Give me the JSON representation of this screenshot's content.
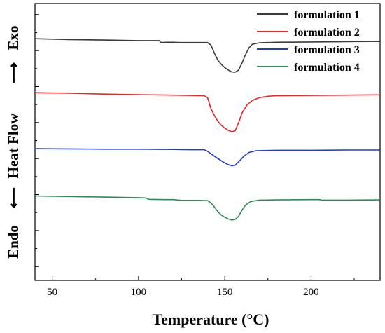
{
  "chart_data": {
    "type": "line",
    "xlabel": "Temperature (°C)",
    "ylabel": {
      "top": "Exo",
      "middle": "Heat Flow",
      "bottom": "Endo"
    },
    "xlim": [
      40,
      240
    ],
    "xticks": [
      50,
      100,
      150,
      200
    ],
    "grid": false,
    "y_tick_labels": false,
    "legend_position": "top-right",
    "series": [
      {
        "name": "formulation 1",
        "color": "#3a3a3a",
        "points": [
          [
            40,
            0.873
          ],
          [
            60,
            0.87
          ],
          [
            80,
            0.868
          ],
          [
            100,
            0.866
          ],
          [
            112,
            0.866
          ],
          [
            113,
            0.859
          ],
          [
            116,
            0.86
          ],
          [
            120,
            0.86
          ],
          [
            125,
            0.859
          ],
          [
            130,
            0.859
          ],
          [
            135,
            0.859
          ],
          [
            140,
            0.859
          ],
          [
            142,
            0.85
          ],
          [
            144,
            0.82
          ],
          [
            146,
            0.795
          ],
          [
            148,
            0.78
          ],
          [
            150,
            0.768
          ],
          [
            152,
            0.76
          ],
          [
            154,
            0.753
          ],
          [
            156,
            0.752
          ],
          [
            158,
            0.76
          ],
          [
            160,
            0.785
          ],
          [
            162,
            0.815
          ],
          [
            164,
            0.84
          ],
          [
            166,
            0.853
          ],
          [
            170,
            0.858
          ],
          [
            180,
            0.86
          ],
          [
            200,
            0.861
          ],
          [
            220,
            0.862
          ],
          [
            240,
            0.863
          ]
        ]
      },
      {
        "name": "formulation 2",
        "color": "#e8262b",
        "points": [
          [
            40,
            0.678
          ],
          [
            60,
            0.676
          ],
          [
            80,
            0.673
          ],
          [
            100,
            0.671
          ],
          [
            120,
            0.669
          ],
          [
            130,
            0.668
          ],
          [
            138,
            0.667
          ],
          [
            140,
            0.66
          ],
          [
            141,
            0.64
          ],
          [
            142,
            0.62
          ],
          [
            144,
            0.595
          ],
          [
            146,
            0.575
          ],
          [
            148,
            0.56
          ],
          [
            150,
            0.55
          ],
          [
            152,
            0.542
          ],
          [
            154,
            0.537
          ],
          [
            156,
            0.54
          ],
          [
            158,
            0.57
          ],
          [
            160,
            0.605
          ],
          [
            163,
            0.635
          ],
          [
            166,
            0.65
          ],
          [
            170,
            0.66
          ],
          [
            175,
            0.665
          ],
          [
            180,
            0.667
          ],
          [
            200,
            0.668
          ],
          [
            220,
            0.669
          ],
          [
            240,
            0.67
          ]
        ]
      },
      {
        "name": "formulation 3",
        "color": "#1f3fbf",
        "points": [
          [
            40,
            0.476
          ],
          [
            60,
            0.475
          ],
          [
            80,
            0.474
          ],
          [
            100,
            0.474
          ],
          [
            120,
            0.473
          ],
          [
            130,
            0.472
          ],
          [
            138,
            0.472
          ],
          [
            140,
            0.466
          ],
          [
            143,
            0.453
          ],
          [
            146,
            0.44
          ],
          [
            149,
            0.428
          ],
          [
            152,
            0.418
          ],
          [
            154,
            0.414
          ],
          [
            156,
            0.416
          ],
          [
            158,
            0.428
          ],
          [
            161,
            0.448
          ],
          [
            164,
            0.462
          ],
          [
            168,
            0.468
          ],
          [
            180,
            0.47
          ],
          [
            200,
            0.47
          ],
          [
            220,
            0.471
          ],
          [
            240,
            0.471
          ]
        ]
      },
      {
        "name": "formulation 4",
        "color": "#2e8b57",
        "points": [
          [
            40,
            0.305
          ],
          [
            60,
            0.303
          ],
          [
            80,
            0.301
          ],
          [
            100,
            0.299
          ],
          [
            104,
            0.298
          ],
          [
            106,
            0.293
          ],
          [
            115,
            0.292
          ],
          [
            120,
            0.292
          ],
          [
            125,
            0.289
          ],
          [
            130,
            0.289
          ],
          [
            135,
            0.289
          ],
          [
            140,
            0.288
          ],
          [
            142,
            0.28
          ],
          [
            144,
            0.265
          ],
          [
            146,
            0.248
          ],
          [
            148,
            0.236
          ],
          [
            150,
            0.228
          ],
          [
            152,
            0.222
          ],
          [
            154,
            0.218
          ],
          [
            156,
            0.22
          ],
          [
            158,
            0.232
          ],
          [
            160,
            0.254
          ],
          [
            162,
            0.272
          ],
          [
            165,
            0.285
          ],
          [
            170,
            0.29
          ],
          [
            180,
            0.291
          ],
          [
            200,
            0.292
          ],
          [
            205,
            0.292
          ],
          [
            206,
            0.29
          ],
          [
            220,
            0.29
          ],
          [
            240,
            0.291
          ]
        ]
      }
    ]
  }
}
